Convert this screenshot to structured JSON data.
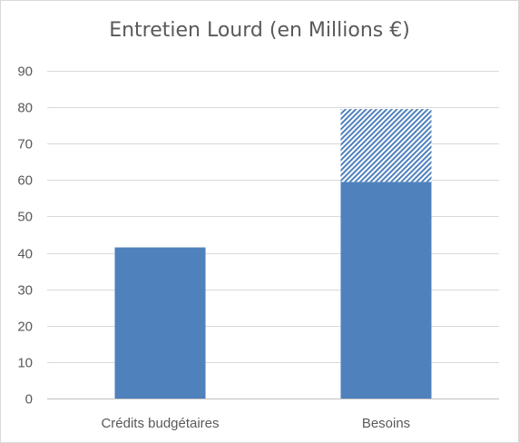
{
  "chart_data": {
    "type": "bar",
    "title": "Entretien Lourd (en Millions €)",
    "categories": [
      "Crédits budgétaires",
      "Besoins"
    ],
    "series": [
      {
        "values": [
          41.5,
          59.5
        ],
        "color": "#4f81bd",
        "pattern": "solid"
      },
      {
        "values": [
          0,
          20.0
        ],
        "color": "#4f81bd",
        "pattern": "hatched"
      }
    ],
    "stacked": true,
    "ylim": [
      0,
      90
    ],
    "yticks": [
      0,
      10,
      20,
      30,
      40,
      50,
      60,
      70,
      80,
      90
    ],
    "grid": true,
    "legend": "none",
    "xlabel": "",
    "ylabel": ""
  }
}
